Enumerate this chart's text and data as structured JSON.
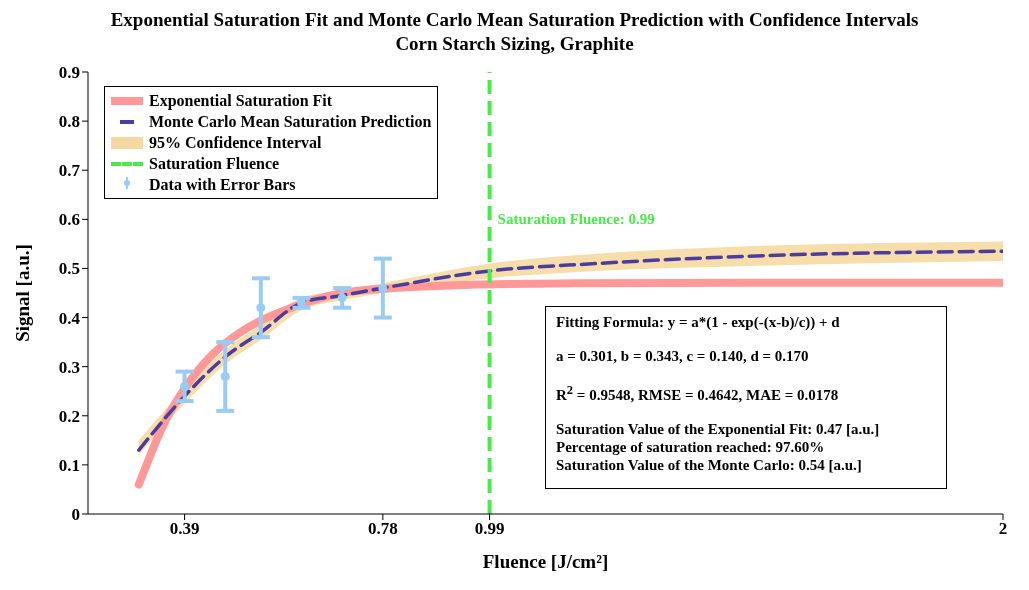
{
  "chart_data": {
    "type": "line",
    "title": "Exponential Saturation Fit and Monte Carlo Mean Saturation Prediction with Confidence Intervals",
    "subtitle": "Corn Starch Sizing, Graphite",
    "xlabel": "Fluence [J/cm²]",
    "ylabel": "Signal [a.u.]",
    "xlim": [
      0.2,
      2
    ],
    "xticks": [
      0.39,
      0.78,
      0.99,
      2
    ],
    "ylim": [
      0,
      0.9
    ],
    "yticks": [
      0,
      0.1,
      0.2,
      0.3,
      0.4,
      0.5,
      0.6,
      0.7,
      0.8,
      0.9
    ],
    "grid": false,
    "legend": "top left",
    "series": [
      {
        "name": "Exponential Saturation Fit",
        "color": "#ff9896",
        "line_style": "solid",
        "x": [
          0.3,
          0.35,
          0.4,
          0.45,
          0.5,
          0.6,
          0.7,
          0.8,
          1.0,
          1.2,
          1.5,
          2
        ],
        "values": [
          0.06,
          0.185,
          0.27,
          0.33,
          0.37,
          0.42,
          0.45,
          0.46,
          0.468,
          0.47,
          0.471,
          0.471
        ]
      },
      {
        "name": "Monte Carlo Mean Saturation Prediction",
        "color": "#4b3c9e",
        "line_style": "dashed",
        "x": [
          0.3,
          0.39,
          0.47,
          0.54,
          0.62,
          0.7,
          0.78,
          0.99,
          1.2,
          1.5,
          2
        ],
        "values": [
          0.13,
          0.24,
          0.32,
          0.37,
          0.43,
          0.445,
          0.46,
          0.495,
          0.51,
          0.525,
          0.535
        ],
        "lower": [
          0.12,
          0.225,
          0.305,
          0.355,
          0.415,
          0.435,
          0.45,
          0.48,
          0.495,
          0.505,
          0.515
        ],
        "upper": [
          0.15,
          0.255,
          0.335,
          0.385,
          0.44,
          0.455,
          0.47,
          0.51,
          0.53,
          0.545,
          0.555
        ]
      },
      {
        "name": "Data with Error Bars",
        "type": "scatter",
        "color": "#99ccf5",
        "marker": "circle",
        "x": [
          0.39,
          0.47,
          0.54,
          0.62,
          0.7,
          0.78
        ],
        "values": [
          0.26,
          0.28,
          0.42,
          0.43,
          0.44,
          0.46
        ],
        "errors": [
          0.03,
          0.07,
          0.06,
          0.01,
          0.02,
          0.06
        ]
      }
    ],
    "ref_lines": [
      {
        "axis": "x",
        "value": 0.99,
        "label": "Saturation Fluence: 0.99",
        "color": "#44ee44",
        "line_style": "dashed"
      }
    ],
    "annotations": [
      "95% Confidence Interval",
      "Saturation Fluence",
      "Fitting Formula: y = a*(1 - exp(-(x-b)/c)) + d",
      "a = 0.301, b = 0.343, c = 0.140, d = 0.170",
      "R$^{2}$ = 0.9548, RMSE = 0.4642, MAE = 0.0178",
      "Saturation Value of the Exponential Fit: 0.47 [a.u.]\nPercentage of saturation reached: 97.60%\nSaturation Value of the Monte Carlo: 0.54 [a.u.]"
    ]
  }
}
